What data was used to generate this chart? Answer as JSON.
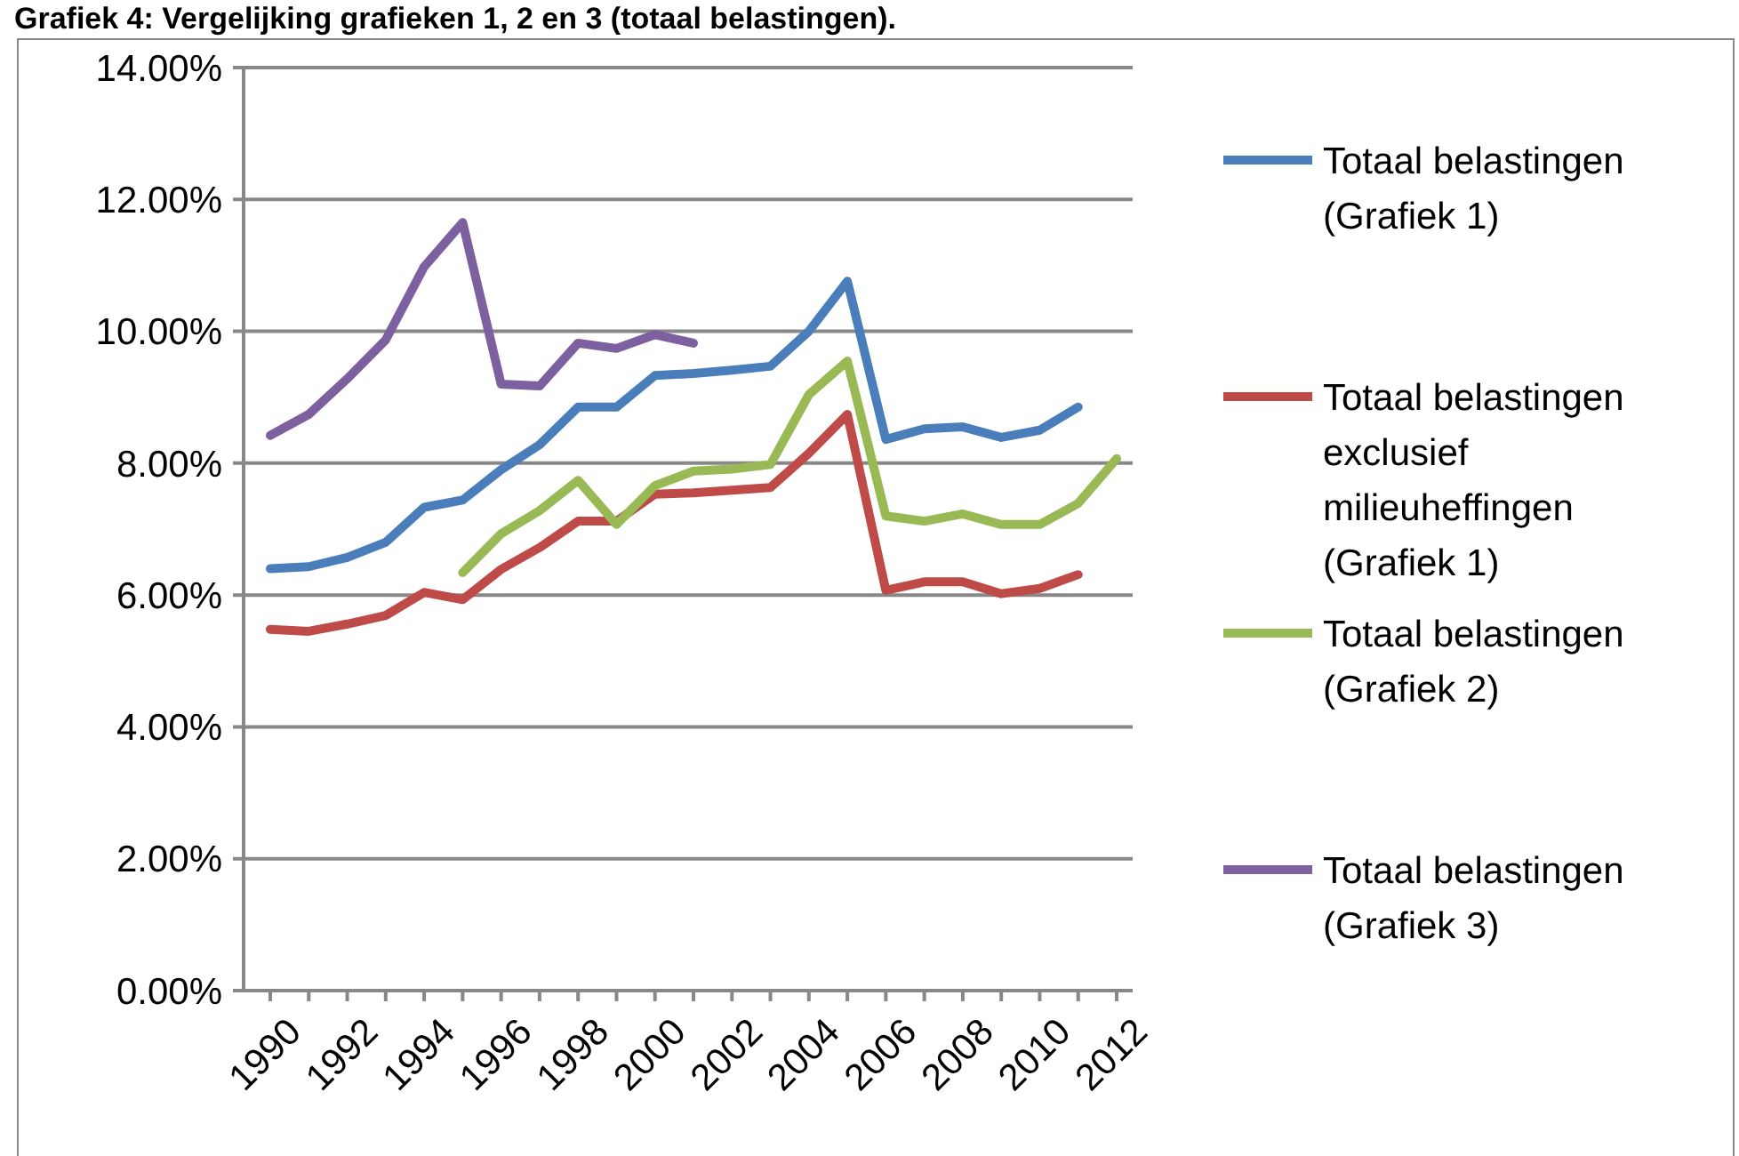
{
  "chart_data": {
    "type": "line",
    "title": "Grafiek 4: Vergelijking grafieken 1, 2 en 3 (totaal belastingen).",
    "categories": [
      "1990",
      null,
      "1992",
      null,
      "1994",
      null,
      "1996",
      null,
      "1998",
      null,
      "2000",
      null,
      "2002",
      null,
      "2004",
      null,
      "2006",
      null,
      "2008",
      null,
      "2010",
      null,
      "2012"
    ],
    "series": [
      {
        "name": "Totaal belastingen (Grafiek 1)",
        "color": "#4a7ebb",
        "values": [
          6.4,
          6.43,
          6.57,
          6.8,
          7.33,
          7.44,
          7.9,
          8.28,
          8.85,
          8.85,
          9.33,
          9.36,
          9.41,
          9.47,
          10.0,
          10.76,
          8.36,
          8.52,
          8.55,
          8.39,
          8.5,
          8.85,
          null
        ]
      },
      {
        "name": "Totaal belastingen exclusief milieuheffingen (Grafiek 1)",
        "color": "#be4b48",
        "values": [
          5.48,
          5.45,
          5.56,
          5.69,
          6.04,
          5.93,
          6.39,
          6.72,
          7.12,
          7.12,
          7.53,
          7.55,
          7.59,
          7.63,
          8.15,
          8.74,
          6.07,
          6.2,
          6.2,
          6.02,
          6.1,
          6.31,
          null
        ]
      },
      {
        "name": "Totaal belastingen (Grafiek 2)",
        "color": "#98b954",
        "values": [
          null,
          null,
          null,
          null,
          null,
          6.34,
          6.93,
          7.28,
          7.74,
          7.07,
          7.66,
          7.88,
          7.91,
          7.98,
          9.04,
          9.55,
          7.2,
          7.12,
          7.23,
          7.07,
          7.07,
          7.39,
          8.07
        ]
      },
      {
        "name": "Totaal belastingen (Grafiek 3)",
        "color": "#7d60a0",
        "values": [
          8.42,
          8.74,
          9.28,
          9.87,
          10.98,
          11.65,
          9.2,
          9.17,
          9.82,
          9.74,
          9.95,
          9.82,
          null,
          null,
          null,
          null,
          null,
          null,
          null,
          null,
          null,
          null,
          null
        ]
      }
    ],
    "ylim": [
      0,
      14
    ],
    "yticks": [
      {
        "value": 0,
        "label": "0.00%"
      },
      {
        "value": 2,
        "label": "2.00%"
      },
      {
        "value": 4,
        "label": "4.00%"
      },
      {
        "value": 6,
        "label": "6.00%"
      },
      {
        "value": 8,
        "label": "8.00%"
      },
      {
        "value": 10,
        "label": "10.00%"
      },
      {
        "value": 12,
        "label": "12.00%"
      },
      {
        "value": 14,
        "label": "14.00%"
      }
    ],
    "grid": "y",
    "legend": "right",
    "marker": "none",
    "line_style": "solid"
  }
}
